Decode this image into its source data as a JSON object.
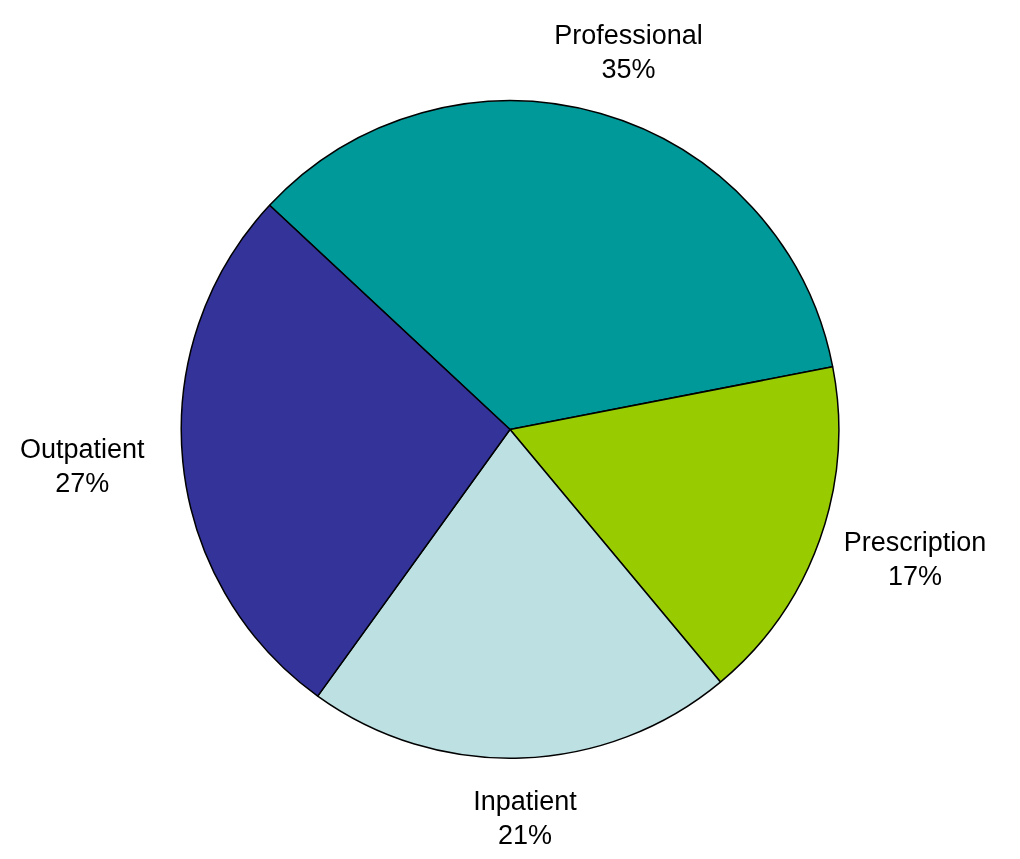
{
  "chart_data": {
    "type": "pie",
    "categories": [
      "Professional",
      "Prescription",
      "Inpatient",
      "Outpatient"
    ],
    "values": [
      35,
      17,
      21,
      27
    ],
    "colors": [
      "#009999",
      "#99cc00",
      "#bde0e3",
      "#333399"
    ],
    "value_labels": [
      "35%",
      "17%",
      "21%",
      "27%"
    ],
    "legend": false
  }
}
